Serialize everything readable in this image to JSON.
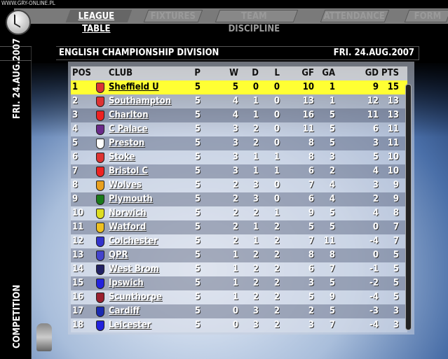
{
  "watermark": "WWW.GRY-ONLINE.PL",
  "tabs": [
    {
      "label": "LEAGUE TABLE",
      "active": true
    },
    {
      "label": "FIXTURES"
    },
    {
      "label": "TEAM DISCIPLINE"
    },
    {
      "label": "ATTENDANCE"
    },
    {
      "label": "FORM"
    }
  ],
  "sidebar": {
    "date": "FRI. 24.AUG.2007",
    "section": "COMPETITION"
  },
  "header": {
    "title": "ENGLISH CHAMPIONSHIP DIVISION",
    "date": "FRI. 24.AUG.2007"
  },
  "columns": {
    "pos": "POS",
    "club": "CLUB",
    "p": "P",
    "w": "W",
    "d": "D",
    "l": "L",
    "gf": "GF",
    "ga": "GA",
    "gd": "GD",
    "pts": "PTS"
  },
  "rows": [
    {
      "pos": "1",
      "club": "Sheffield U",
      "p": "5",
      "w": "5",
      "d": "0",
      "l": "0",
      "gf": "10",
      "ga": "1",
      "gd": "9",
      "pts": "15",
      "color": "#d33",
      "highlight": true
    },
    {
      "pos": "2",
      "club": "Southampton",
      "p": "5",
      "w": "4",
      "d": "1",
      "l": "0",
      "gf": "13",
      "ga": "1",
      "gd": "12",
      "pts": "13",
      "color": "#d33"
    },
    {
      "pos": "3",
      "club": "Charlton",
      "p": "5",
      "w": "4",
      "d": "1",
      "l": "0",
      "gf": "16",
      "ga": "5",
      "gd": "11",
      "pts": "13",
      "color": "#e22"
    },
    {
      "pos": "4",
      "club": "C Palace",
      "p": "5",
      "w": "3",
      "d": "2",
      "l": "0",
      "gf": "11",
      "ga": "5",
      "gd": "6",
      "pts": "11",
      "color": "#6a2a8a"
    },
    {
      "pos": "5",
      "club": "Preston",
      "p": "5",
      "w": "3",
      "d": "2",
      "l": "0",
      "gf": "8",
      "ga": "5",
      "gd": "3",
      "pts": "11",
      "color": "#fff"
    },
    {
      "pos": "6",
      "club": "Stoke",
      "p": "5",
      "w": "3",
      "d": "1",
      "l": "1",
      "gf": "8",
      "ga": "3",
      "gd": "5",
      "pts": "10",
      "color": "#d33"
    },
    {
      "pos": "7",
      "club": "Bristol C",
      "p": "5",
      "w": "3",
      "d": "1",
      "l": "1",
      "gf": "6",
      "ga": "2",
      "gd": "4",
      "pts": "10",
      "color": "#e22"
    },
    {
      "pos": "8",
      "club": "Wolves",
      "p": "5",
      "w": "2",
      "d": "3",
      "l": "0",
      "gf": "7",
      "ga": "4",
      "gd": "3",
      "pts": "9",
      "color": "#e8a020"
    },
    {
      "pos": "9",
      "club": "Plymouth",
      "p": "5",
      "w": "2",
      "d": "3",
      "l": "0",
      "gf": "6",
      "ga": "4",
      "gd": "2",
      "pts": "9",
      "color": "#1a7a1a"
    },
    {
      "pos": "10",
      "club": "Norwich",
      "p": "5",
      "w": "2",
      "d": "2",
      "l": "1",
      "gf": "9",
      "ga": "5",
      "gd": "4",
      "pts": "8",
      "color": "#dd2"
    },
    {
      "pos": "11",
      "club": "Watford",
      "p": "5",
      "w": "2",
      "d": "1",
      "l": "2",
      "gf": "5",
      "ga": "5",
      "gd": "0",
      "pts": "7",
      "color": "#eec020"
    },
    {
      "pos": "12",
      "club": "Colchester",
      "p": "5",
      "w": "2",
      "d": "1",
      "l": "2",
      "gf": "7",
      "ga": "11",
      "gd": "-4",
      "pts": "7",
      "color": "#33c"
    },
    {
      "pos": "13",
      "club": "QPR",
      "p": "5",
      "w": "1",
      "d": "2",
      "l": "2",
      "gf": "8",
      "ga": "8",
      "gd": "0",
      "pts": "5",
      "color": "#44c"
    },
    {
      "pos": "14",
      "club": "West Brom",
      "p": "5",
      "w": "1",
      "d": "2",
      "l": "2",
      "gf": "6",
      "ga": "7",
      "gd": "-1",
      "pts": "5",
      "color": "#226"
    },
    {
      "pos": "15",
      "club": "Ipswich",
      "p": "5",
      "w": "1",
      "d": "2",
      "l": "2",
      "gf": "3",
      "ga": "5",
      "gd": "-2",
      "pts": "5",
      "color": "#22d"
    },
    {
      "pos": "16",
      "club": "Scunthorpe",
      "p": "5",
      "w": "1",
      "d": "2",
      "l": "2",
      "gf": "5",
      "ga": "9",
      "gd": "-4",
      "pts": "5",
      "color": "#9a2030"
    },
    {
      "pos": "17",
      "club": "Cardiff",
      "p": "5",
      "w": "0",
      "d": "3",
      "l": "2",
      "gf": "2",
      "ga": "5",
      "gd": "-3",
      "pts": "3",
      "color": "#1a2ab0"
    },
    {
      "pos": "18",
      "club": "Leicester",
      "p": "5",
      "w": "0",
      "d": "3",
      "l": "2",
      "gf": "3",
      "ga": "7",
      "gd": "-4",
      "pts": "3",
      "color": "#22d"
    }
  ]
}
